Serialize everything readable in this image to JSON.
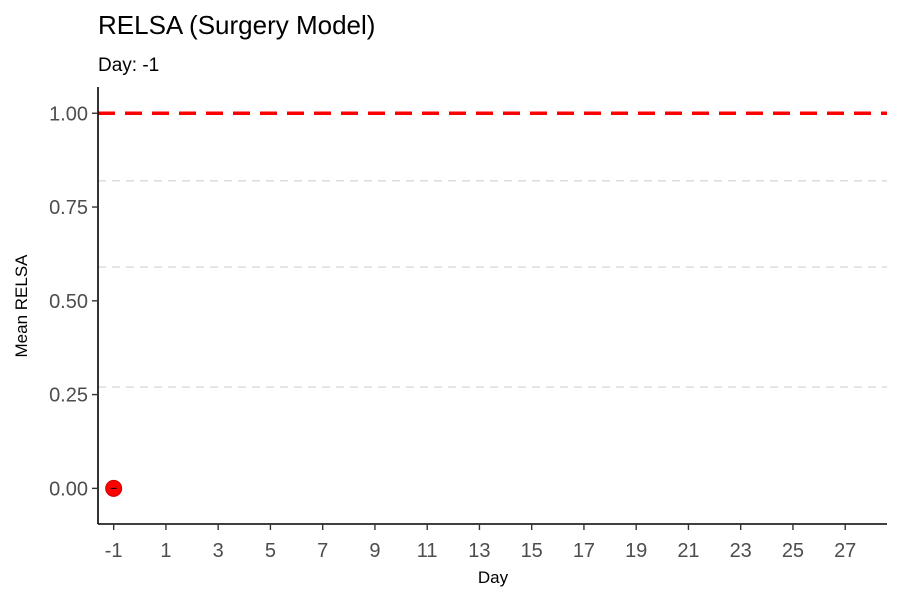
{
  "chart_data": {
    "type": "scatter",
    "title": "RELSA (Surgery Model)",
    "subtitle": "Day: -1",
    "xlabel": "Day",
    "ylabel": "Mean RELSA",
    "x_ticks": [
      "-1",
      "1",
      "3",
      "5",
      "7",
      "9",
      "11",
      "13",
      "15",
      "17",
      "19",
      "21",
      "23",
      "25",
      "27"
    ],
    "y_ticks": [
      "0.00",
      "0.25",
      "0.50",
      "0.75",
      "1.00"
    ],
    "xlim": [
      -1.6,
      28.6
    ],
    "ylim": [
      -0.095,
      1.07
    ],
    "series": [
      {
        "points": [
          {
            "x": -1,
            "y": 0.0
          }
        ]
      }
    ],
    "reference_lines": [
      {
        "y": 1.0,
        "style": "dashed",
        "color": "#ff0000"
      },
      {
        "y": 0.82,
        "style": "dashed",
        "color": "#d9d9d9"
      },
      {
        "y": 0.59,
        "style": "dashed",
        "color": "#d9d9d9"
      },
      {
        "y": 0.27,
        "style": "dashed",
        "color": "#d9d9d9"
      }
    ],
    "point_color": "#ff0000",
    "grid": false,
    "legend": "none"
  }
}
